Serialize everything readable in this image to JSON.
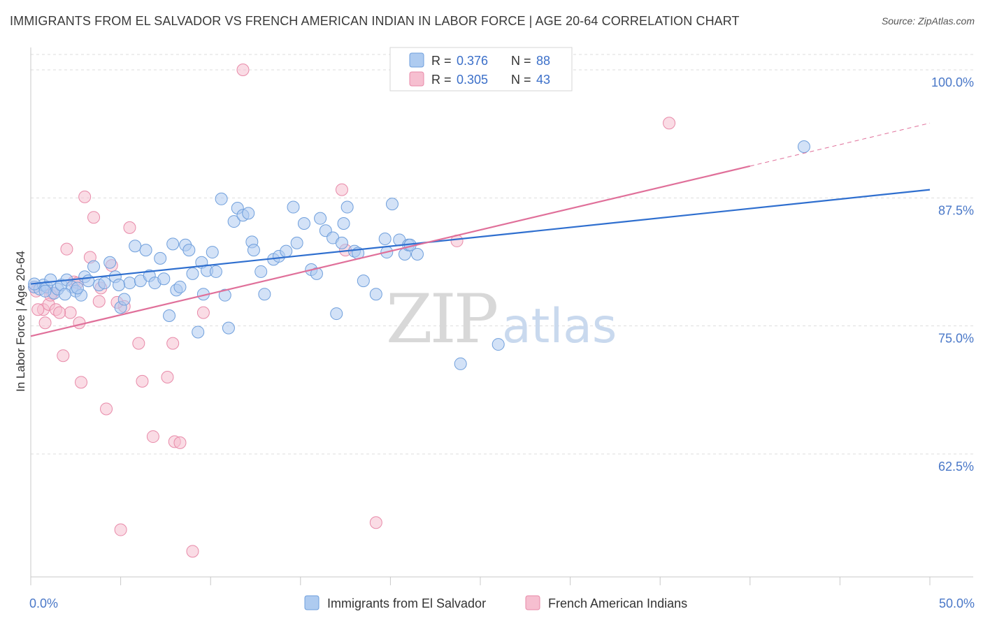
{
  "header": {
    "title": "IMMIGRANTS FROM EL SALVADOR VS FRENCH AMERICAN INDIAN IN LABOR FORCE | AGE 20-64 CORRELATION CHART",
    "source": "Source: ZipAtlas.com"
  },
  "watermark": {
    "part1": "ZIP",
    "part2": "atlas"
  },
  "legend": {
    "r_label": "R =",
    "n_label": "N =",
    "items": [
      {
        "r": "0.376",
        "n": "88"
      },
      {
        "r": "0.305",
        "n": "43"
      }
    ]
  },
  "colors": {
    "blue_fill": "#aecbf0",
    "blue_stroke": "#6f9fdc",
    "blue_line": "#2f6fcf",
    "pink_fill": "#f6bfd0",
    "pink_stroke": "#e88aa9",
    "pink_line": "#e0709a",
    "tick_label": "#4a78c8",
    "grid": "#dddddd"
  },
  "chart_data": {
    "type": "scatter",
    "title": "IMMIGRANTS FROM EL SALVADOR VS FRENCH AMERICAN INDIAN IN LABOR FORCE | AGE 20-64 CORRELATION CHART",
    "xlabel": "",
    "ylabel": "In Labor Force | Age 20-64",
    "xlim": [
      0,
      50
    ],
    "ylim": [
      50.5,
      101.5
    ],
    "x_ticks": [
      "0.0%",
      "50.0%"
    ],
    "y_ticks": [
      {
        "value": 100.0,
        "label": "100.0%"
      },
      {
        "value": 87.5,
        "label": "87.5%"
      },
      {
        "value": 75.0,
        "label": "75.0%"
      },
      {
        "value": 62.5,
        "label": "62.5%"
      }
    ],
    "grid": "horizontal dashed",
    "legend_position": "top-center",
    "series": [
      {
        "name": "Immigrants from El Salvador",
        "color": "blue",
        "trend": {
          "x": [
            0,
            50
          ],
          "y": [
            79.1,
            88.3
          ]
        },
        "points": [
          [
            0.2,
            78.8
          ],
          [
            0.5,
            78.6
          ],
          [
            0.7,
            79.0
          ],
          [
            0.9,
            78.8
          ],
          [
            1.1,
            79.5
          ],
          [
            1.3,
            78.2
          ],
          [
            1.5,
            78.6
          ],
          [
            1.7,
            79.0
          ],
          [
            2.0,
            79.5
          ],
          [
            2.3,
            78.8
          ],
          [
            2.5,
            78.4
          ],
          [
            2.8,
            78.0
          ],
          [
            3.0,
            79.8
          ],
          [
            3.2,
            79.4
          ],
          [
            3.5,
            80.8
          ],
          [
            3.8,
            79.0
          ],
          [
            4.1,
            79.2
          ],
          [
            4.4,
            81.2
          ],
          [
            4.7,
            79.8
          ],
          [
            5.0,
            76.8
          ],
          [
            5.2,
            77.6
          ],
          [
            5.5,
            79.2
          ],
          [
            5.8,
            82.8
          ],
          [
            6.1,
            79.4
          ],
          [
            6.4,
            82.4
          ],
          [
            6.6,
            79.9
          ],
          [
            6.9,
            79.2
          ],
          [
            7.2,
            81.6
          ],
          [
            7.4,
            79.6
          ],
          [
            7.7,
            76.0
          ],
          [
            7.9,
            83.0
          ],
          [
            8.1,
            78.5
          ],
          [
            8.3,
            78.8
          ],
          [
            8.6,
            82.9
          ],
          [
            8.8,
            82.4
          ],
          [
            9.0,
            80.1
          ],
          [
            9.3,
            74.4
          ],
          [
            9.5,
            81.2
          ],
          [
            9.6,
            78.1
          ],
          [
            9.8,
            80.4
          ],
          [
            10.1,
            82.2
          ],
          [
            10.3,
            80.3
          ],
          [
            10.6,
            87.4
          ],
          [
            10.8,
            78.0
          ],
          [
            11.0,
            74.8
          ],
          [
            11.3,
            85.2
          ],
          [
            11.5,
            86.5
          ],
          [
            11.8,
            85.8
          ],
          [
            12.1,
            86.0
          ],
          [
            12.3,
            83.2
          ],
          [
            12.4,
            82.4
          ],
          [
            12.8,
            80.3
          ],
          [
            13.0,
            78.1
          ],
          [
            13.5,
            81.5
          ],
          [
            13.8,
            81.8
          ],
          [
            14.2,
            82.3
          ],
          [
            14.6,
            86.6
          ],
          [
            14.8,
            83.1
          ],
          [
            15.2,
            85.0
          ],
          [
            15.6,
            80.5
          ],
          [
            15.9,
            80.1
          ],
          [
            16.1,
            85.5
          ],
          [
            16.4,
            84.3
          ],
          [
            16.8,
            83.6
          ],
          [
            17.0,
            76.2
          ],
          [
            17.3,
            83.1
          ],
          [
            17.4,
            85.0
          ],
          [
            17.6,
            86.6
          ],
          [
            18.0,
            82.3
          ],
          [
            18.2,
            82.1
          ],
          [
            18.5,
            79.4
          ],
          [
            19.2,
            78.1
          ],
          [
            19.7,
            83.5
          ],
          [
            19.8,
            82.2
          ],
          [
            20.1,
            86.9
          ],
          [
            20.5,
            83.4
          ],
          [
            20.8,
            82.0
          ],
          [
            21.0,
            82.9
          ],
          [
            21.1,
            82.9
          ],
          [
            21.5,
            82.0
          ],
          [
            23.9,
            71.3
          ],
          [
            26.0,
            73.2
          ],
          [
            43.0,
            92.5
          ],
          [
            0.2,
            79.1
          ],
          [
            0.8,
            78.4
          ],
          [
            2.6,
            78.7
          ],
          [
            1.9,
            78.1
          ],
          [
            4.9,
            79.0
          ]
        ]
      },
      {
        "name": "French American Indians",
        "color": "pink",
        "trend": {
          "x": [
            0,
            40
          ],
          "y": [
            74.0,
            90.6
          ]
        },
        "trend_dashed": {
          "x": [
            40,
            50
          ],
          "y": [
            90.6,
            94.8
          ]
        },
        "points": [
          [
            0.2,
            78.8
          ],
          [
            0.7,
            76.6
          ],
          [
            0.8,
            75.3
          ],
          [
            1.0,
            77.1
          ],
          [
            1.2,
            78.2
          ],
          [
            1.4,
            76.6
          ],
          [
            1.8,
            72.1
          ],
          [
            2.0,
            82.5
          ],
          [
            2.2,
            76.3
          ],
          [
            2.4,
            79.3
          ],
          [
            2.7,
            75.3
          ],
          [
            2.8,
            69.5
          ],
          [
            3.0,
            87.6
          ],
          [
            3.3,
            81.7
          ],
          [
            3.5,
            85.6
          ],
          [
            3.8,
            77.4
          ],
          [
            4.2,
            66.9
          ],
          [
            4.5,
            80.9
          ],
          [
            5.0,
            55.1
          ],
          [
            5.2,
            76.9
          ],
          [
            5.5,
            84.6
          ],
          [
            6.0,
            73.3
          ],
          [
            6.2,
            69.6
          ],
          [
            6.8,
            64.2
          ],
          [
            7.6,
            70.0
          ],
          [
            7.9,
            73.3
          ],
          [
            8.0,
            63.7
          ],
          [
            8.3,
            63.6
          ],
          [
            9.0,
            53.0
          ],
          [
            9.6,
            76.3
          ],
          [
            11.8,
            100.0
          ],
          [
            17.3,
            88.3
          ],
          [
            17.5,
            82.4
          ],
          [
            23.7,
            83.3
          ],
          [
            35.5,
            94.8
          ],
          [
            19.2,
            55.8
          ],
          [
            0.4,
            76.6
          ],
          [
            1.6,
            76.3
          ],
          [
            3.9,
            78.7
          ],
          [
            4.8,
            77.3
          ],
          [
            0.3,
            78.4
          ],
          [
            2.6,
            79.2
          ],
          [
            1.1,
            78.0
          ]
        ]
      }
    ]
  },
  "bottom_legend": [
    "Immigrants from El Salvador",
    "French American Indians"
  ]
}
